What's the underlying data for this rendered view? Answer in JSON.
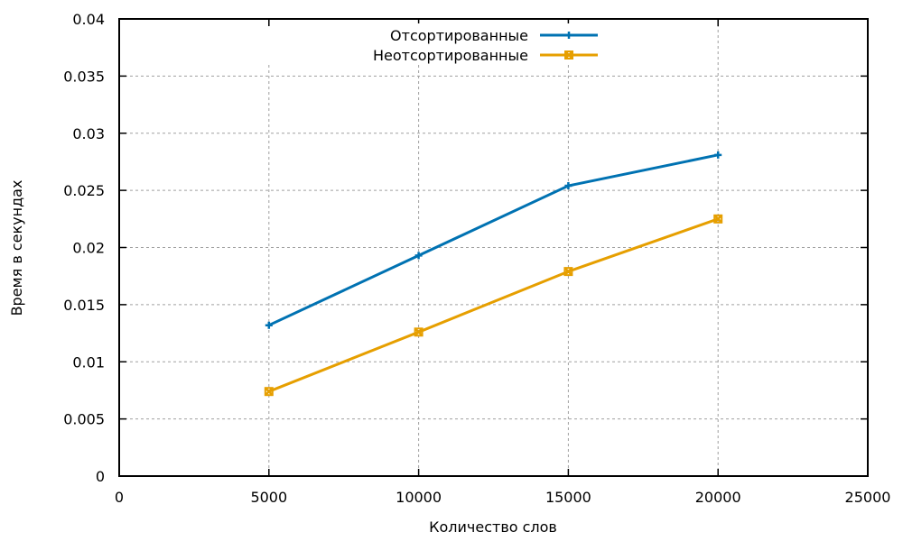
{
  "chart_data": {
    "type": "line",
    "title": "",
    "xlabel": "Количество слов",
    "ylabel": "Время в секундах",
    "xlim": [
      0,
      25000
    ],
    "ylim": [
      0,
      0.04
    ],
    "x_ticks": [
      0,
      5000,
      10000,
      15000,
      20000,
      25000
    ],
    "y_ticks": [
      0,
      0.005,
      0.01,
      0.015,
      0.02,
      0.025,
      0.03,
      0.035,
      0.04
    ],
    "x_tick_labels": [
      "0",
      "5000",
      "10000",
      "15000",
      "20000",
      "25000"
    ],
    "y_tick_labels": [
      "0",
      "0.005",
      "0.01",
      "0.015",
      "0.02",
      "0.025",
      "0.03",
      "0.035",
      "0.04"
    ],
    "grid": true,
    "legend": "top-center",
    "series": [
      {
        "name": "Отсортированные",
        "color": "#0072b2",
        "marker": "plus",
        "x": [
          5000,
          10000,
          15000,
          20000
        ],
        "values": [
          0.0132,
          0.0193,
          0.0254,
          0.0281
        ]
      },
      {
        "name": "Неотсортированные",
        "color": "#e69f00",
        "marker": "x-square",
        "x": [
          5000,
          10000,
          15000,
          20000
        ],
        "values": [
          0.0074,
          0.0126,
          0.0179,
          0.0225
        ]
      }
    ]
  }
}
